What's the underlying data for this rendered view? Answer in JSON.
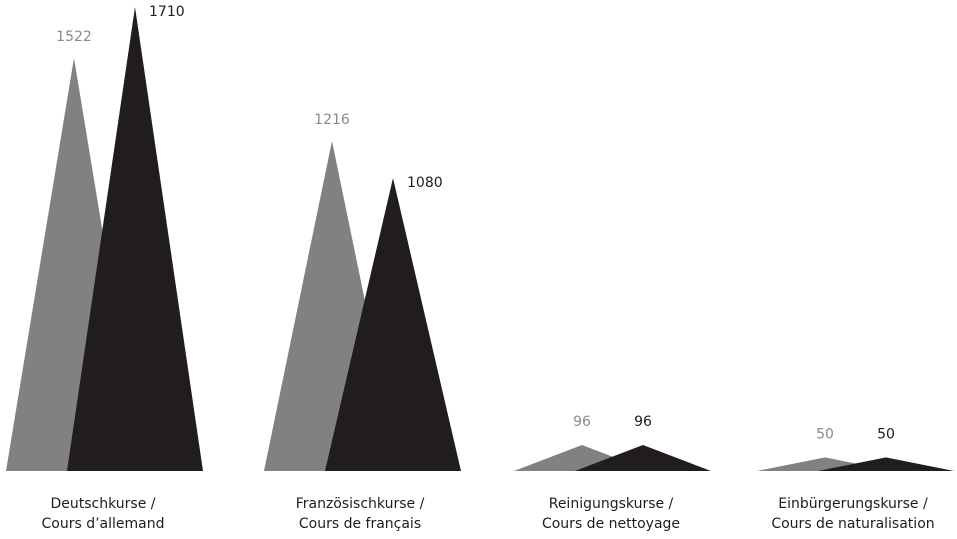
{
  "chart_data": {
    "type": "area",
    "series": [
      {
        "values": [
          1522,
          1216,
          96,
          50
        ],
        "color": "#818183"
      },
      {
        "values": [
          1710,
          1080,
          96,
          50
        ],
        "color": "#211d1e"
      }
    ],
    "categories": [
      {
        "line1": "Deutschkurse /",
        "line2": "Cours d’allemand"
      },
      {
        "line1": "Französischkurse /",
        "line2": "Cours de français"
      },
      {
        "line1": "Reinigungskurse /",
        "line2": "Cours de nettoyage"
      },
      {
        "line1": "Einbürgerungskurse /",
        "line2": "Cours de naturalisation"
      }
    ],
    "ylim": [
      0,
      1710
    ]
  }
}
